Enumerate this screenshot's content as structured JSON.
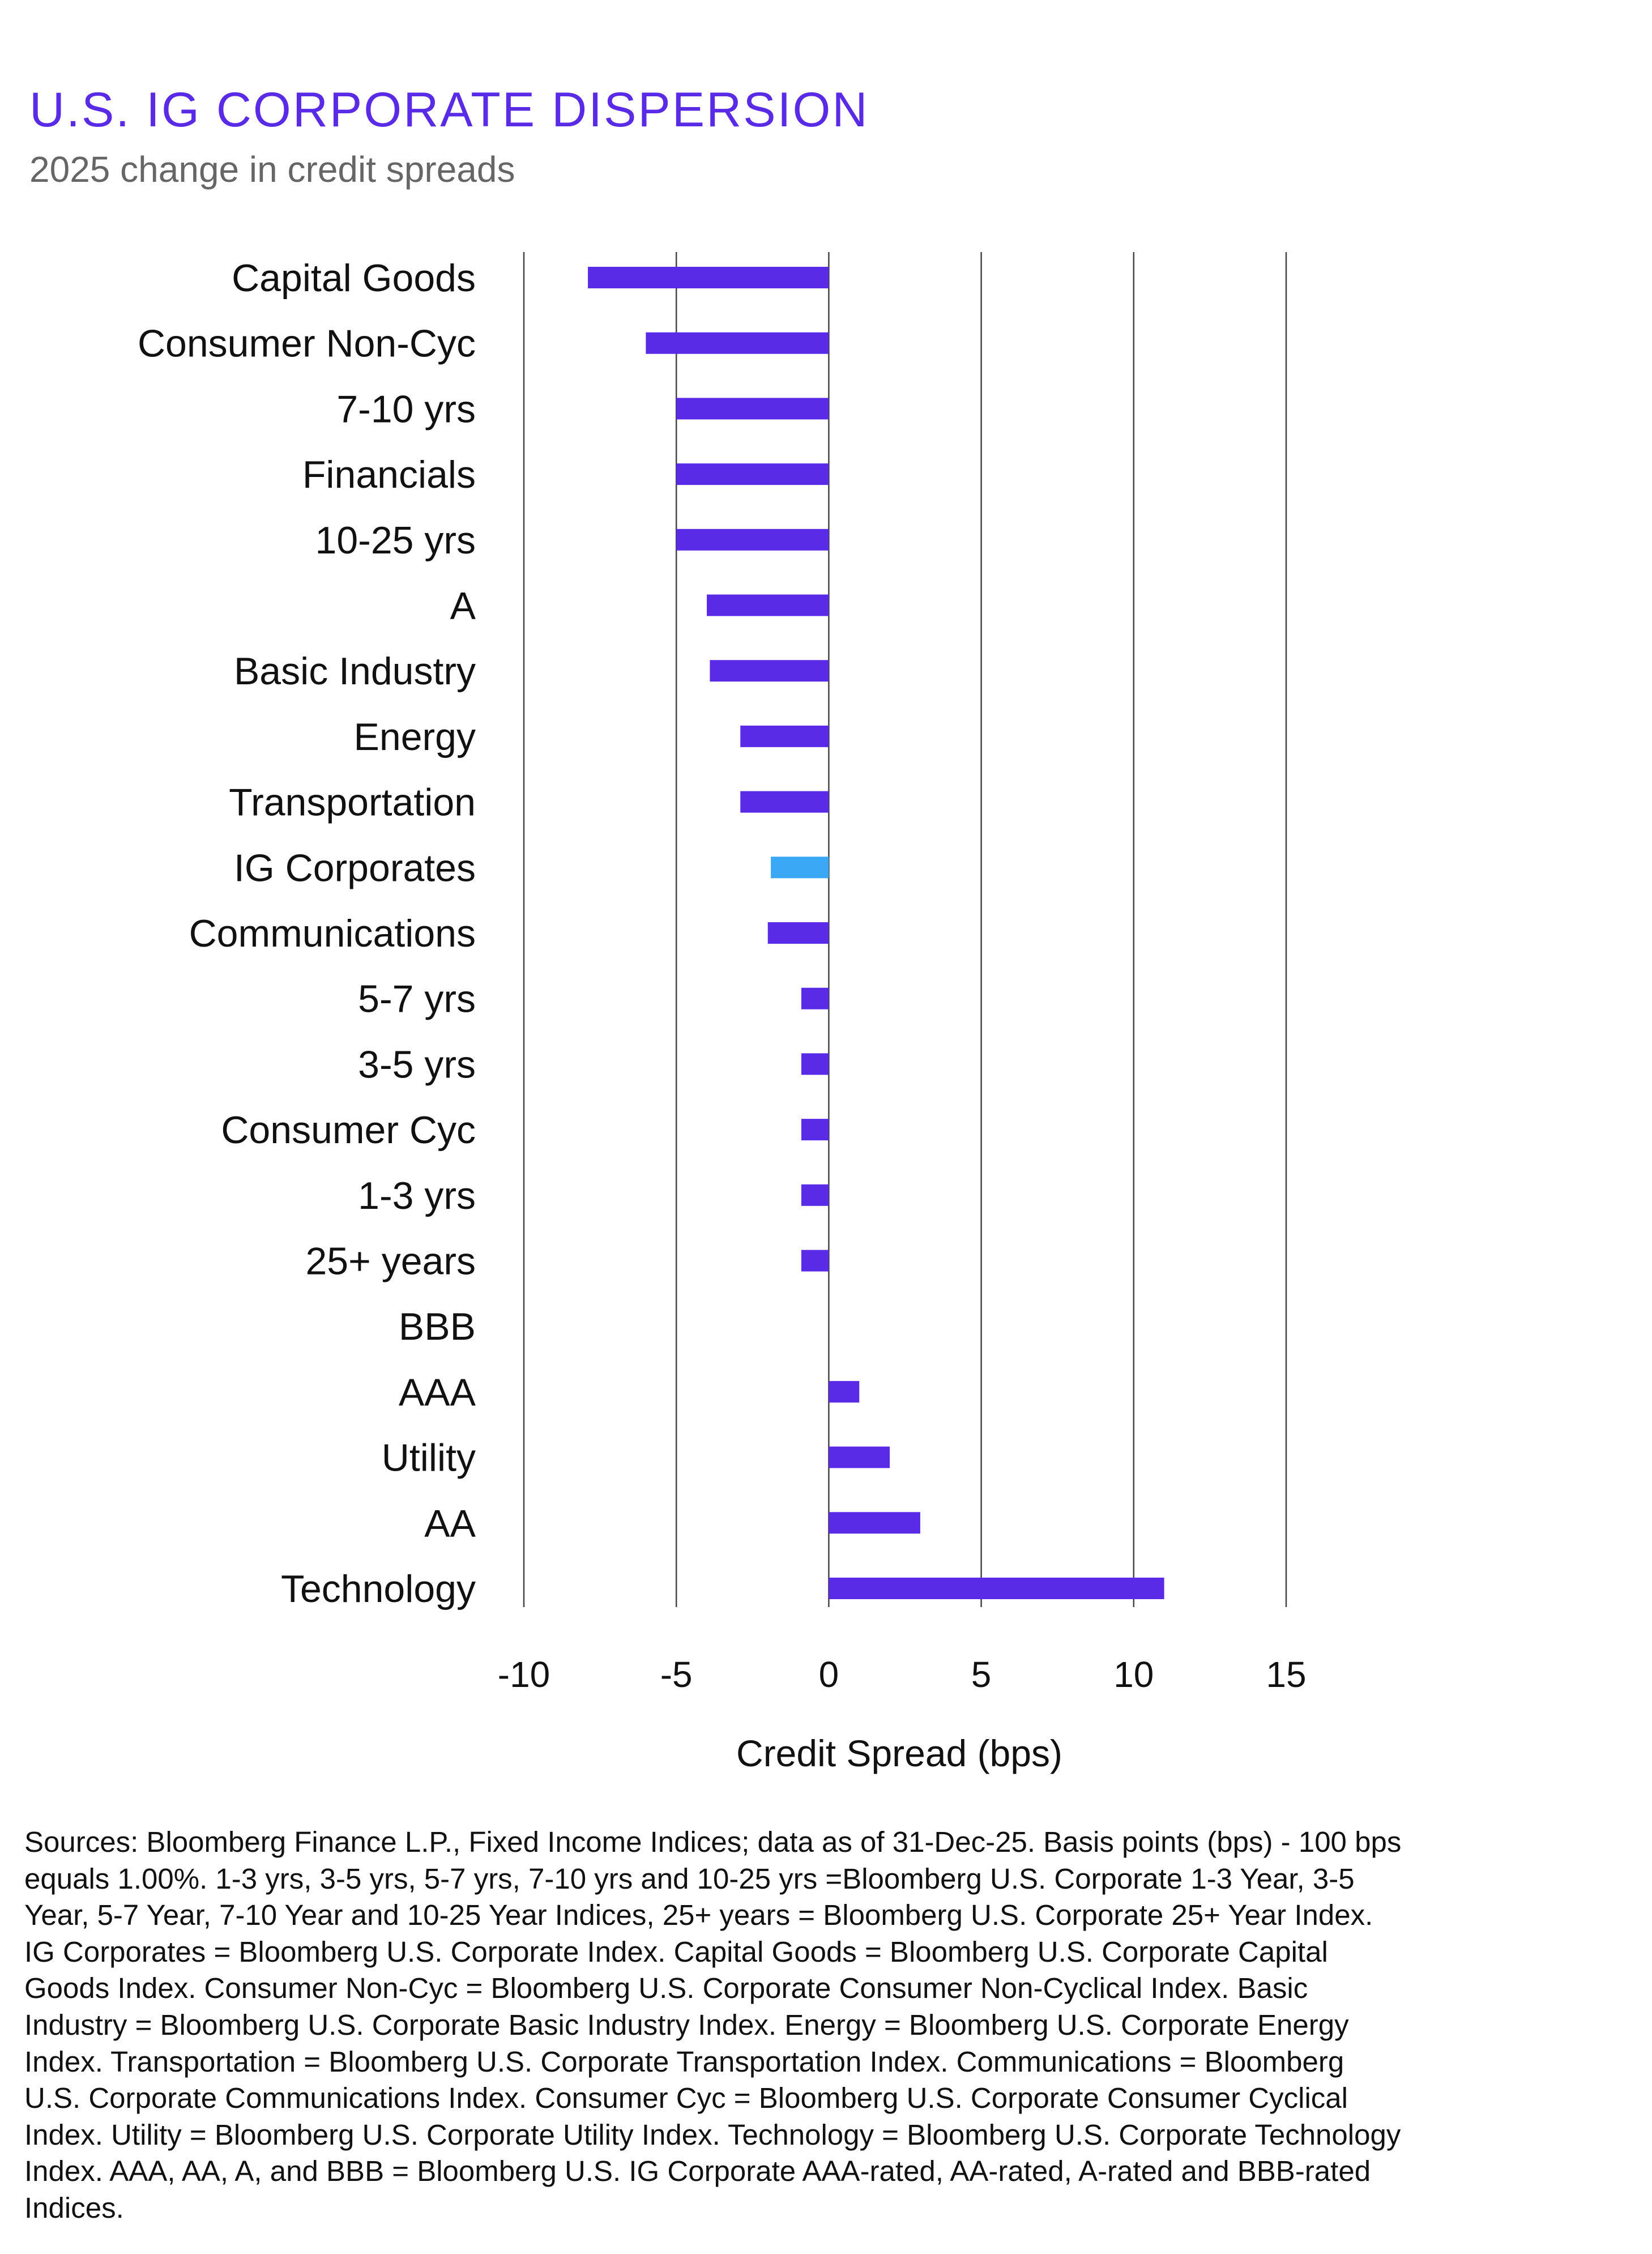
{
  "title": "U.S. IG CORPORATE DISPERSION",
  "subtitle": "2025 change in credit spreads",
  "chart_data": {
    "type": "bar",
    "orientation": "horizontal",
    "categories": [
      "Capital Goods",
      "Consumer Non-Cyc",
      "7-10 yrs",
      "Financials",
      "10-25 yrs",
      "A",
      "Basic Industry",
      "Energy",
      "Transportation",
      "IG Corporates",
      "Communications",
      "5-7 yrs",
      "3-5 yrs",
      "Consumer Cyc",
      "1-3 yrs",
      "25+ years",
      "BBB",
      "AAA",
      "Utility",
      "AA",
      "Technology"
    ],
    "values": [
      -7.9,
      -6,
      -5,
      -5,
      -5,
      -4,
      -3.9,
      -2.9,
      -2.9,
      -1.9,
      -2,
      -0.9,
      -0.9,
      -0.9,
      -0.9,
      -0.9,
      0,
      1,
      2,
      3,
      11
    ],
    "highlight": "IG Corporates",
    "colors": {
      "bar": "#5a2be6",
      "highlight": "#3aa8f5",
      "title": "#5a2be6"
    },
    "xlabel": "Credit Spread (bps)",
    "xlim": [
      -10,
      15
    ],
    "xticks": [
      "-10",
      "-5",
      "0",
      "5",
      "10",
      "15"
    ],
    "grid": "vertical",
    "legend": "none"
  },
  "footnote": "Sources: Bloomberg Finance L.P., Fixed Income Indices; data as of 31-Dec-25. Basis points (bps) - 100 bps equals 1.00%. 1-3 yrs, 3-5 yrs, 5-7 yrs, 7-10 yrs and 10-25 yrs =Bloomberg U.S. Corporate 1-3 Year, 3-5 Year, 5-7 Year, 7-10 Year and 10-25 Year Indices, 25+ years = Bloomberg U.S. Corporate 25+ Year Index. IG Corporates = Bloomberg U.S. Corporate Index. Capital Goods = Bloomberg U.S. Corporate Capital Goods Index. Consumer Non-Cyc = Bloomberg U.S. Corporate Consumer Non-Cyclical Index. Basic Industry = Bloomberg U.S. Corporate Basic Industry Index. Energy = Bloomberg U.S. Corporate Energy Index. Transportation = Bloomberg U.S. Corporate Transportation Index. Communications = Bloomberg U.S. Corporate Communications Index. Consumer Cyc = Bloomberg U.S. Corporate Consumer Cyclical Index. Utility = Bloomberg U.S. Corporate Utility Index. Technology = Bloomberg U.S. Corporate Technology Index. AAA, AA, A, and BBB = Bloomberg U.S. IG Corporate AAA-rated, AA-rated, A-rated and BBB-rated Indices."
}
